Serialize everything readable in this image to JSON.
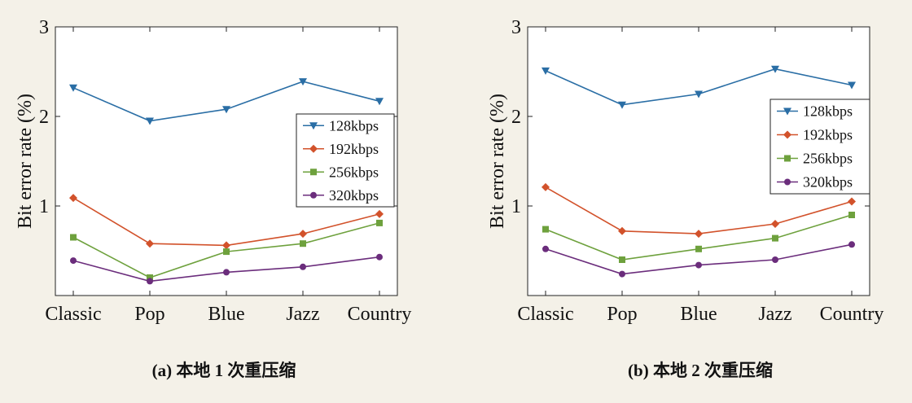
{
  "series_styles": [
    {
      "name": "128kbps",
      "color": "#2a6ea5",
      "marker": "triangle-down"
    },
    {
      "name": "192kbps",
      "color": "#d2522b",
      "marker": "diamond"
    },
    {
      "name": "256kbps",
      "color": "#6ea13d",
      "marker": "square"
    },
    {
      "name": "320kbps",
      "color": "#6b2d7c",
      "marker": "circle"
    }
  ],
  "chart_data": [
    {
      "type": "line",
      "caption": "(a) 本地 1 次重压缩",
      "ylabel": "Bit error rate (%)",
      "xlabel": "",
      "categories": [
        "Classic",
        "Pop",
        "Blue",
        "Jazz",
        "Country"
      ],
      "ylim": [
        0,
        3
      ],
      "yticks": [
        1,
        2,
        3
      ],
      "grid": false,
      "legend_position": "right",
      "series": [
        {
          "name": "128kbps",
          "values": [
            2.32,
            1.95,
            2.08,
            2.39,
            2.17
          ]
        },
        {
          "name": "192kbps",
          "values": [
            1.09,
            0.58,
            0.56,
            0.69,
            0.91
          ]
        },
        {
          "name": "256kbps",
          "values": [
            0.65,
            0.2,
            0.49,
            0.58,
            0.81
          ]
        },
        {
          "name": "320kbps",
          "values": [
            0.39,
            0.16,
            0.26,
            0.32,
            0.43
          ]
        }
      ]
    },
    {
      "type": "line",
      "caption": "(b) 本地 2 次重压缩",
      "ylabel": "Bit error rate (%)",
      "xlabel": "",
      "categories": [
        "Classic",
        "Pop",
        "Blue",
        "Jazz",
        "Country"
      ],
      "ylim": [
        0,
        3
      ],
      "yticks": [
        1,
        2,
        3
      ],
      "grid": false,
      "legend_position": "right",
      "series": [
        {
          "name": "128kbps",
          "values": [
            2.51,
            2.13,
            2.25,
            2.53,
            2.35
          ]
        },
        {
          "name": "192kbps",
          "values": [
            1.21,
            0.72,
            0.69,
            0.8,
            1.05
          ]
        },
        {
          "name": "256kbps",
          "values": [
            0.74,
            0.4,
            0.52,
            0.64,
            0.9
          ]
        },
        {
          "name": "320kbps",
          "values": [
            0.52,
            0.24,
            0.34,
            0.4,
            0.57
          ]
        }
      ]
    }
  ]
}
